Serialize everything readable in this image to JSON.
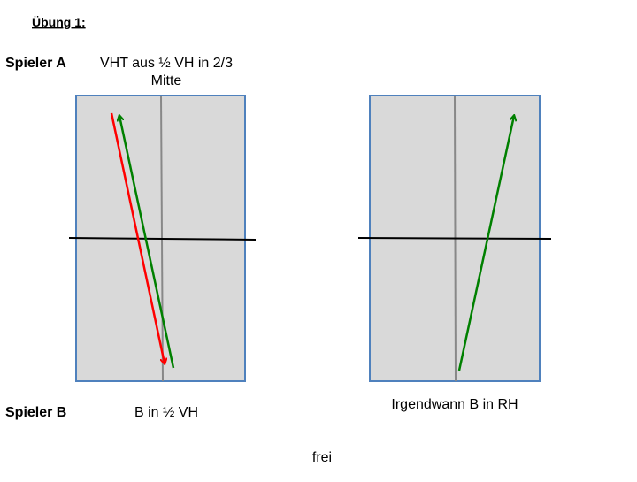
{
  "title": "Übung 1:",
  "player_a": {
    "label": "Spieler A",
    "text_line1": "VHT aus ½ VH in 2/3",
    "text_line2": "Mitte"
  },
  "player_b": {
    "label": "Spieler B",
    "text": "B in ½ VH"
  },
  "right_caption": "Irgendwann B in RH",
  "footer": "frei"
}
